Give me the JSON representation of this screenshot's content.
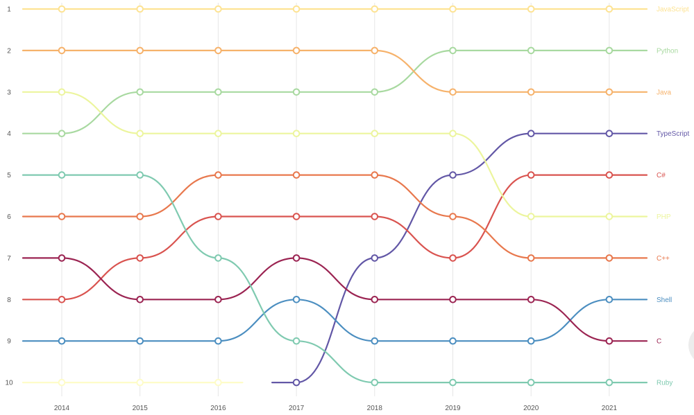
{
  "chart_data": {
    "type": "line",
    "title": "",
    "xlabel": "",
    "ylabel": "",
    "x": [
      "2014",
      "2015",
      "2016",
      "2017",
      "2018",
      "2019",
      "2020",
      "2021"
    ],
    "yticks": [
      "1",
      "2",
      "3",
      "4",
      "5",
      "6",
      "7",
      "8",
      "9",
      "10"
    ],
    "ylim": [
      1,
      10
    ],
    "y_inverted": true,
    "grid": "vertical",
    "legend": "right-end labels",
    "series": [
      {
        "name": "JavaScript",
        "color": "#fde393",
        "values": [
          1,
          1,
          1,
          1,
          1,
          1,
          1,
          1
        ]
      },
      {
        "name": "Python",
        "color": "#a8d9a0",
        "values": [
          4,
          3,
          3,
          3,
          3,
          2,
          2,
          2
        ]
      },
      {
        "name": "Java",
        "color": "#f6b26b",
        "values": [
          2,
          2,
          2,
          2,
          2,
          3,
          3,
          3
        ]
      },
      {
        "name": "TypeScript",
        "color": "#6257a6",
        "values": [
          null,
          null,
          null,
          10,
          7,
          5,
          4,
          4
        ]
      },
      {
        "name": "C#",
        "color": "#d9534f",
        "values": [
          8,
          7,
          6,
          6,
          6,
          7,
          5,
          5
        ]
      },
      {
        "name": "PHP",
        "color": "#ecf59d",
        "values": [
          3,
          4,
          4,
          4,
          4,
          4,
          6,
          6
        ]
      },
      {
        "name": "C++",
        "color": "#e8784d",
        "values": [
          6,
          6,
          5,
          5,
          5,
          6,
          7,
          7
        ]
      },
      {
        "name": "Shell",
        "color": "#4b8ec0",
        "values": [
          9,
          9,
          9,
          8,
          9,
          9,
          9,
          8
        ]
      },
      {
        "name": "C",
        "color": "#9b2452",
        "values": [
          7,
          8,
          8,
          7,
          8,
          8,
          8,
          9
        ]
      },
      {
        "name": "Ruby",
        "color": "#7fcab0",
        "values": [
          5,
          5,
          7,
          9,
          10,
          10,
          10,
          10
        ]
      },
      {
        "name": "",
        "color": "#fefcc8",
        "values": [
          10,
          10,
          10,
          null,
          null,
          null,
          null,
          null
        ]
      }
    ]
  }
}
